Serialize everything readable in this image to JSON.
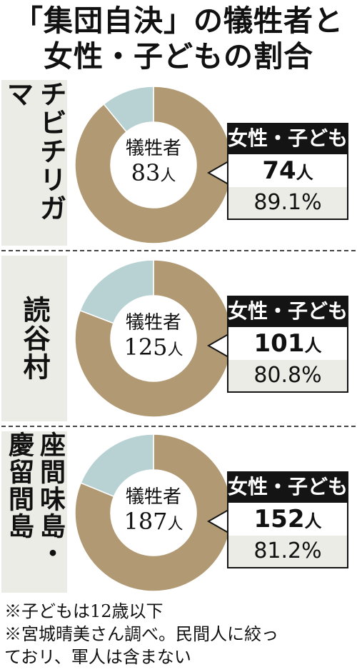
{
  "title": [
    "「集団自決」の犠牲者と",
    "女性・子どもの割合"
  ],
  "colors": {
    "main": "#b19a73",
    "minor": "#b8d2d4",
    "dark": "#141414",
    "pale": "#ecece6"
  },
  "chart_data": [
    {
      "type": "pie",
      "location": "チビチリガマ",
      "center_caption": "犠牲者",
      "total": 83,
      "total_unit": "人",
      "callout_header": "女性・子ども",
      "women_children": 74,
      "women_children_unit": "人",
      "percent": 89.1,
      "percent_text": "89.1%"
    },
    {
      "type": "pie",
      "location": "読谷村",
      "center_caption": "犠牲者",
      "total": 125,
      "total_unit": "人",
      "callout_header": "女性・子ども",
      "women_children": 101,
      "women_children_unit": "人",
      "percent": 80.8,
      "percent_text": "80.8%"
    },
    {
      "type": "pie",
      "location": "座間味島・慶留間島",
      "center_caption": "犠牲者",
      "total": 187,
      "total_unit": "人",
      "callout_header": "女性・子ども",
      "women_children": 152,
      "women_children_unit": "人",
      "percent": 81.2,
      "percent_text": "81.2%"
    }
  ],
  "notes": [
    "※子どもは12歳以下",
    "※宮城晴美さん調べ。民間人に絞っ",
    "ておリ、軍人は含まない"
  ]
}
